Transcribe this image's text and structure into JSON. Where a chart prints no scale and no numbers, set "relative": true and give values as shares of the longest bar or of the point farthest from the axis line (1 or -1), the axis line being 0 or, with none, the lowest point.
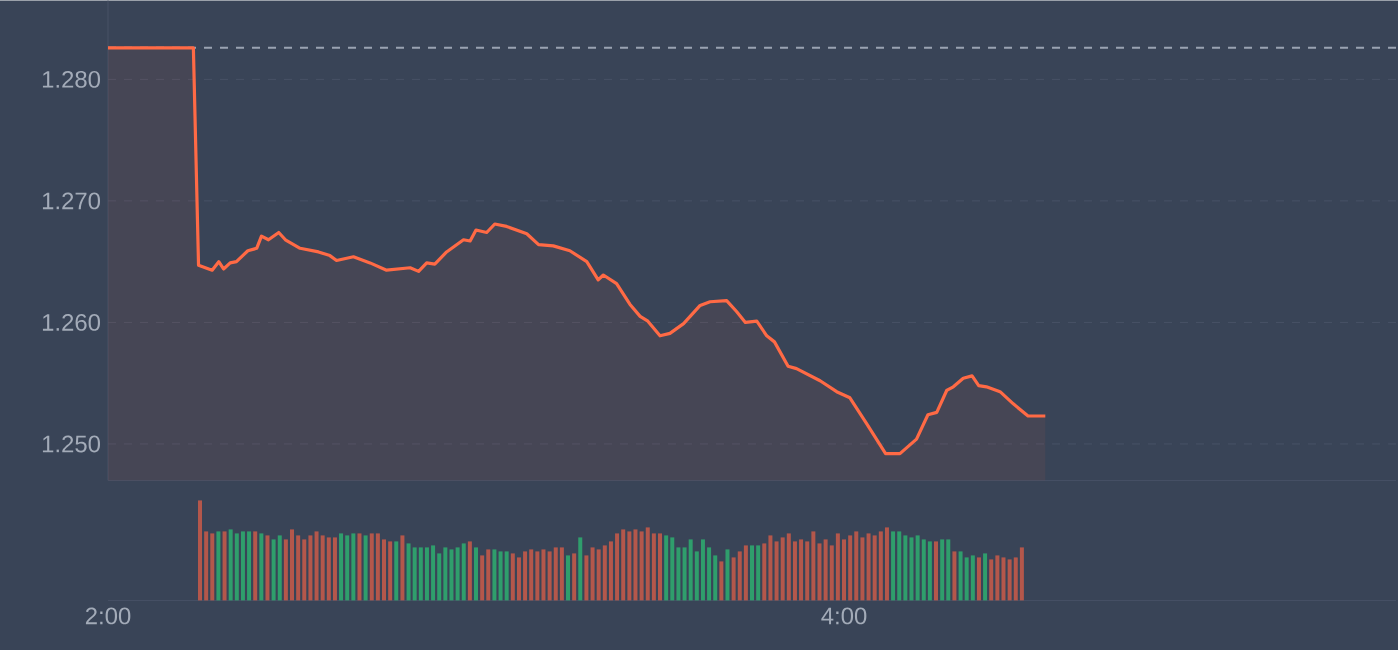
{
  "chart_data": [
    {
      "type": "area",
      "xlim": [
        2,
        5.5
      ],
      "ylim": [
        1.247,
        1.2865
      ],
      "grid": "y",
      "tick_labels": "y",
      "yticks": [
        {
          "value": 1.25,
          "label": "1.250"
        },
        {
          "value": 1.26,
          "label": "1.260"
        },
        {
          "value": 1.27,
          "label": "1.270"
        },
        {
          "value": 1.28,
          "label": "1.280"
        }
      ],
      "ref_lines": [
        {
          "axis": "y",
          "value": 1.2826,
          "color": "#9aa3b2",
          "line_style": "dashed"
        }
      ],
      "series": [
        {
          "color": "#ff6a45",
          "x": [
            2.0,
            2.232,
            2.246,
            2.283,
            2.301,
            2.314,
            2.332,
            2.349,
            2.38,
            2.404,
            2.417,
            2.436,
            2.464,
            2.482,
            2.522,
            2.572,
            2.603,
            2.621,
            2.667,
            2.712,
            2.757,
            2.821,
            2.844,
            2.866,
            2.888,
            2.92,
            2.966,
            2.984,
            3.0,
            3.029,
            3.051,
            3.083,
            3.138,
            3.17,
            3.21,
            3.255,
            3.301,
            3.332,
            3.346,
            3.382,
            3.418,
            3.446,
            3.467,
            3.5,
            3.527,
            3.564,
            3.609,
            3.636,
            3.681,
            3.708,
            3.732,
            3.763,
            3.79,
            3.811,
            3.848,
            3.871,
            3.935,
            3.98,
            4.016,
            4.061,
            4.113,
            4.152,
            4.197,
            4.228,
            4.252,
            4.279,
            4.297,
            4.324,
            4.348,
            4.366,
            4.387,
            4.424,
            4.46,
            4.5,
            4.547
          ],
          "values": [
            1.2826,
            1.2826,
            1.2647,
            1.2643,
            1.265,
            1.2644,
            1.2649,
            1.265,
            1.2659,
            1.2661,
            1.2671,
            1.2668,
            1.2674,
            1.2668,
            1.2661,
            1.2658,
            1.2655,
            1.2651,
            1.2654,
            1.2649,
            1.2643,
            1.2645,
            1.2642,
            1.2649,
            1.2648,
            1.2658,
            1.2668,
            1.2667,
            1.2676,
            1.2674,
            1.2681,
            1.2679,
            1.2673,
            1.2664,
            1.2663,
            1.2659,
            1.265,
            1.2635,
            1.2639,
            1.2632,
            1.2615,
            1.2605,
            1.2601,
            1.2589,
            1.2591,
            1.2599,
            1.2614,
            1.2617,
            1.2618,
            1.2609,
            1.26,
            1.2601,
            1.2589,
            1.2584,
            1.2564,
            1.2562,
            1.2552,
            1.2543,
            1.2538,
            1.2517,
            1.2492,
            1.2492,
            1.2504,
            1.2524,
            1.2526,
            1.2544,
            1.2547,
            1.2554,
            1.2556,
            1.2548,
            1.2547,
            1.2543,
            1.2533,
            1.2523,
            1.2523
          ]
        }
      ]
    },
    {
      "type": "bar",
      "relative": true,
      "xlim": [
        2,
        5.5
      ],
      "tick_labels": "x",
      "xticks": [
        {
          "value": 2,
          "label": "2:00"
        },
        {
          "value": 4,
          "label": "4:00"
        }
      ],
      "x": [
        2.25,
        2.2667,
        2.2833,
        2.3,
        2.3167,
        2.3333,
        2.35,
        2.3667,
        2.3833,
        2.4,
        2.4167,
        2.4333,
        2.45,
        2.4667,
        2.4833,
        2.5,
        2.5167,
        2.5333,
        2.55,
        2.5667,
        2.5833,
        2.6,
        2.6167,
        2.6333,
        2.65,
        2.6667,
        2.6833,
        2.7,
        2.7167,
        2.7333,
        2.75,
        2.7667,
        2.7833,
        2.8,
        2.8167,
        2.8333,
        2.85,
        2.8667,
        2.8833,
        2.9,
        2.9167,
        2.9333,
        2.95,
        2.9667,
        2.9833,
        3.0,
        3.0167,
        3.0333,
        3.05,
        3.0667,
        3.0833,
        3.1,
        3.1167,
        3.1333,
        3.15,
        3.1667,
        3.1833,
        3.2,
        3.2167,
        3.2333,
        3.25,
        3.2667,
        3.2833,
        3.3,
        3.3167,
        3.3333,
        3.35,
        3.3667,
        3.3833,
        3.4,
        3.4167,
        3.4333,
        3.45,
        3.4667,
        3.4833,
        3.5,
        3.5167,
        3.5333,
        3.55,
        3.5667,
        3.5833,
        3.6,
        3.6167,
        3.6333,
        3.65,
        3.6667,
        3.6833,
        3.7,
        3.7167,
        3.7333,
        3.75,
        3.7667,
        3.7833,
        3.8,
        3.8167,
        3.8333,
        3.85,
        3.8667,
        3.8833,
        3.9,
        3.9167,
        3.9333,
        3.95,
        3.9667,
        3.9833,
        4.0,
        4.0167,
        4.0333,
        4.05,
        4.0667,
        4.0833,
        4.1,
        4.1167,
        4.1333,
        4.15,
        4.1667,
        4.1833,
        4.2,
        4.2167,
        4.2333,
        4.25,
        4.2667,
        4.2833,
        4.3,
        4.3167,
        4.3333,
        4.35,
        4.3667,
        4.3833,
        4.4,
        4.4167,
        4.4333,
        4.45,
        4.4667,
        4.4833
      ],
      "values": [
        1.0,
        0.69,
        0.67,
        0.69,
        0.69,
        0.71,
        0.67,
        0.69,
        0.69,
        0.69,
        0.67,
        0.65,
        0.61,
        0.65,
        0.61,
        0.71,
        0.65,
        0.61,
        0.65,
        0.69,
        0.65,
        0.63,
        0.63,
        0.67,
        0.65,
        0.67,
        0.67,
        0.65,
        0.67,
        0.67,
        0.61,
        0.59,
        0.59,
        0.65,
        0.57,
        0.53,
        0.53,
        0.53,
        0.55,
        0.47,
        0.53,
        0.51,
        0.53,
        0.57,
        0.59,
        0.53,
        0.45,
        0.51,
        0.51,
        0.49,
        0.49,
        0.47,
        0.43,
        0.49,
        0.51,
        0.49,
        0.51,
        0.49,
        0.53,
        0.53,
        0.45,
        0.47,
        0.63,
        0.45,
        0.53,
        0.51,
        0.55,
        0.59,
        0.67,
        0.71,
        0.69,
        0.71,
        0.69,
        0.73,
        0.67,
        0.67,
        0.65,
        0.63,
        0.53,
        0.53,
        0.61,
        0.49,
        0.61,
        0.53,
        0.45,
        0.39,
        0.51,
        0.43,
        0.49,
        0.55,
        0.55,
        0.55,
        0.57,
        0.65,
        0.59,
        0.63,
        0.67,
        0.59,
        0.61,
        0.59,
        0.69,
        0.57,
        0.61,
        0.55,
        0.67,
        0.61,
        0.65,
        0.69,
        0.63,
        0.67,
        0.65,
        0.69,
        0.73,
        0.69,
        0.69,
        0.65,
        0.63,
        0.65,
        0.61,
        0.59,
        0.59,
        0.61,
        0.61,
        0.49,
        0.49,
        0.43,
        0.45,
        0.43,
        0.47,
        0.41,
        0.45,
        0.43,
        0.41,
        0.43,
        0.53
      ],
      "colors": [
        "#b4574b",
        "#b4574b",
        "#b4574b",
        "#2f9e6c",
        "#b4574b",
        "#2f9e6c",
        "#2f9e6c",
        "#2f9e6c",
        "#2f9e6c",
        "#b4574b",
        "#2f9e6c",
        "#b4574b",
        "#2f9e6c",
        "#2f9e6c",
        "#b4574b",
        "#b4574b",
        "#b4574b",
        "#b4574b",
        "#b4574b",
        "#b4574b",
        "#b4574b",
        "#b4574b",
        "#b4574b",
        "#2f9e6c",
        "#2f9e6c",
        "#2f9e6c",
        "#b4574b",
        "#2f9e6c",
        "#b4574b",
        "#b4574b",
        "#b4574b",
        "#b4574b",
        "#2f9e6c",
        "#b4574b",
        "#2f9e6c",
        "#2f9e6c",
        "#2f9e6c",
        "#2f9e6c",
        "#2f9e6c",
        "#2f9e6c",
        "#2f9e6c",
        "#2f9e6c",
        "#2f9e6c",
        "#2f9e6c",
        "#b4574b",
        "#2f9e6c",
        "#b4574b",
        "#b4574b",
        "#2f9e6c",
        "#2f9e6c",
        "#2f9e6c",
        "#b4574b",
        "#b4574b",
        "#b4574b",
        "#b4574b",
        "#b4574b",
        "#b4574b",
        "#b4574b",
        "#b4574b",
        "#b4574b",
        "#2f9e6c",
        "#b4574b",
        "#2f9e6c",
        "#b4574b",
        "#b4574b",
        "#b4574b",
        "#b4574b",
        "#b4574b",
        "#b4574b",
        "#b4574b",
        "#b4574b",
        "#b4574b",
        "#b4574b",
        "#b4574b",
        "#b4574b",
        "#b4574b",
        "#2f9e6c",
        "#2f9e6c",
        "#2f9e6c",
        "#2f9e6c",
        "#2f9e6c",
        "#2f9e6c",
        "#2f9e6c",
        "#2f9e6c",
        "#2f9e6c",
        "#b4574b",
        "#2f9e6c",
        "#b4574b",
        "#b4574b",
        "#b4574b",
        "#2f9e6c",
        "#2f9e6c",
        "#b4574b",
        "#b4574b",
        "#b4574b",
        "#b4574b",
        "#b4574b",
        "#b4574b",
        "#b4574b",
        "#b4574b",
        "#b4574b",
        "#b4574b",
        "#b4574b",
        "#b4574b",
        "#b4574b",
        "#b4574b",
        "#b4574b",
        "#b4574b",
        "#b4574b",
        "#b4574b",
        "#b4574b",
        "#b4574b",
        "#b4574b",
        "#2f9e6c",
        "#2f9e6c",
        "#2f9e6c",
        "#2f9e6c",
        "#2f9e6c",
        "#2f9e6c",
        "#2f9e6c",
        "#b4574b",
        "#2f9e6c",
        "#2f9e6c",
        "#b4574b",
        "#2f9e6c",
        "#2f9e6c",
        "#2f9e6c",
        "#b4574b",
        "#2f9e6c",
        "#b4574b",
        "#b4574b",
        "#b4574b",
        "#b4574b",
        "#b4574b",
        "#b4574b"
      ]
    }
  ]
}
